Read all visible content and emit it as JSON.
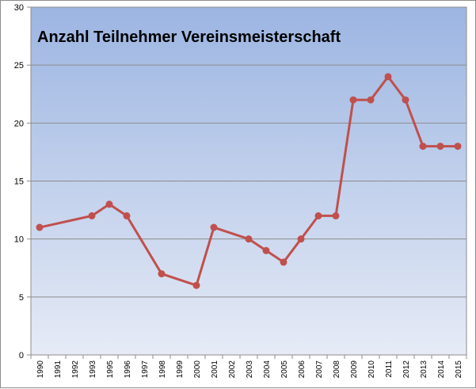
{
  "chart_data": {
    "type": "line",
    "title": "Anzahl Teilnehmer Vereinsmeisterschaft",
    "xlabel": "",
    "ylabel": "",
    "ylim": [
      0,
      30
    ],
    "yticks": [
      0,
      5,
      10,
      15,
      20,
      25,
      30
    ],
    "grid": true,
    "legend": "none",
    "categories": [
      "1990",
      "1991",
      "1992",
      "1993",
      "1995",
      "1996",
      "1997",
      "1998",
      "1999",
      "2000",
      "2001",
      "2002",
      "2003",
      "2004",
      "2005",
      "2006",
      "2007",
      "2008",
      "2009",
      "2010",
      "2011",
      "2012",
      "2013",
      "2014",
      "2015"
    ],
    "series": [
      {
        "color": "#c0504d",
        "points": [
          {
            "x": "1990",
            "y": 11
          },
          {
            "x": "1993",
            "y": 12
          },
          {
            "x": "1995",
            "y": 13
          },
          {
            "x": "1996",
            "y": 12
          },
          {
            "x": "1998",
            "y": 7
          },
          {
            "x": "2000",
            "y": 6
          },
          {
            "x": "2001",
            "y": 11
          },
          {
            "x": "2003",
            "y": 10
          },
          {
            "x": "2004",
            "y": 9
          },
          {
            "x": "2005",
            "y": 8
          },
          {
            "x": "2006",
            "y": 10
          },
          {
            "x": "2007",
            "y": 12
          },
          {
            "x": "2008",
            "y": 12
          },
          {
            "x": "2009",
            "y": 22
          },
          {
            "x": "2010",
            "y": 22
          },
          {
            "x": "2011",
            "y": 24
          },
          {
            "x": "2012",
            "y": 22
          },
          {
            "x": "2013",
            "y": 18
          },
          {
            "x": "2014",
            "y": 18
          },
          {
            "x": "2015",
            "y": 18
          }
        ]
      }
    ]
  },
  "colors": {
    "plot_top": "#9cb5e2",
    "plot_bottom": "#e6ebf6",
    "gridline": "#8c8c8c",
    "series": "#c0504d"
  }
}
